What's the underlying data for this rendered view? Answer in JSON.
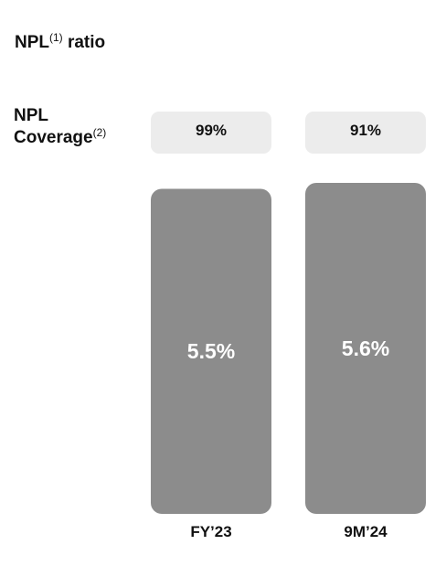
{
  "title": {
    "text": "NPL",
    "sup": "(1)",
    "suffix": " ratio"
  },
  "coverage": {
    "line1": "NPL",
    "line2": "Coverage",
    "sup": "(2)",
    "values": [
      "99%",
      "91%"
    ]
  },
  "colors": {
    "bar": "#8c8c8c",
    "pill": "#ececec",
    "bar_label": "#ffffff",
    "text": "#111111"
  },
  "chart_data": {
    "type": "bar",
    "title": "NPL(1) ratio",
    "categories": [
      "FY’23",
      "9M’24"
    ],
    "series": [
      {
        "values": [
          5.5,
          5.6
        ]
      }
    ],
    "data_labels": [
      "5.5%",
      "5.6%"
    ],
    "ylim": [
      0,
      5.6
    ],
    "grid": false
  }
}
